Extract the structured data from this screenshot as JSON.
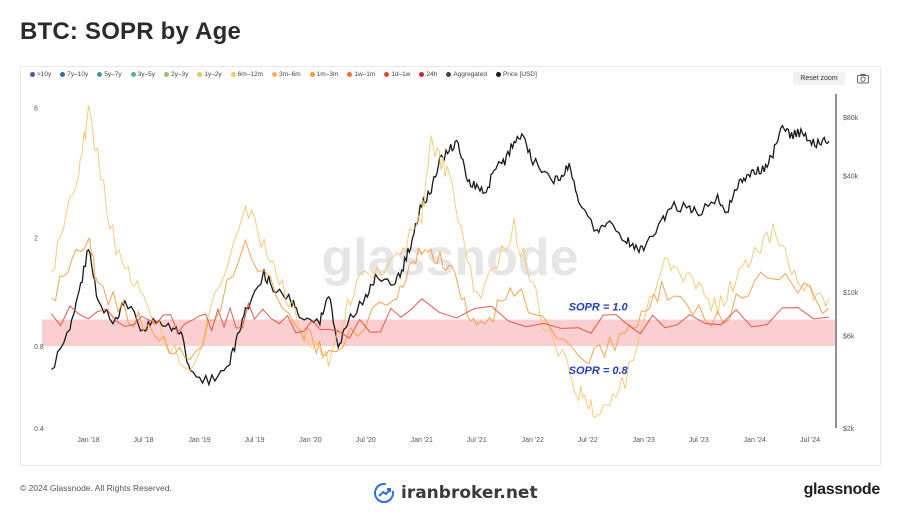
{
  "page": {
    "title": "BTC: SOPR by Age",
    "reset_zoom_label": "Reset zoom",
    "copyright": "© 2024 Glassnode. All Rights Reserved.",
    "brand_center": "iranbroker.net",
    "brand_right": "glassnode",
    "watermark": "glassnode"
  },
  "legend": [
    {
      "label": ">10y",
      "color": "#5a4fb8"
    },
    {
      "label": "7y–10y",
      "color": "#3a6aa8"
    },
    {
      "label": "5y–7y",
      "color": "#4a94a8"
    },
    {
      "label": "3y–5y",
      "color": "#5fae90"
    },
    {
      "label": "2y–3y",
      "color": "#9cc26a"
    },
    {
      "label": "1y–2y",
      "color": "#d9cf5a"
    },
    {
      "label": "6m–12m",
      "color": "#f2c66a"
    },
    {
      "label": "3m–6m",
      "color": "#f7b25e"
    },
    {
      "label": "1m–3m",
      "color": "#f49a3c"
    },
    {
      "label": "1w–1m",
      "color": "#ef6e3a"
    },
    {
      "label": "1d–1w",
      "color": "#e24a38"
    },
    {
      "label": "24h",
      "color": "#c8283a"
    },
    {
      "label": "Aggregated",
      "color": "#444444"
    },
    {
      "label": "Price [USD]",
      "color": "#1a1a1a"
    }
  ],
  "chart_data": {
    "type": "line",
    "title": "BTC: SOPR by Age",
    "x_ticks": [
      "Jan '18",
      "Jul '18",
      "Jan '19",
      "Jul '19",
      "Jan '20",
      "Jul '20",
      "Jan '21",
      "Jul '21",
      "Jan '22",
      "Jul '22",
      "Jan '23",
      "Jul '23",
      "Jan '24",
      "Jul '24"
    ],
    "y_left": {
      "scale": "log",
      "ticks": [
        0.4,
        0.8,
        2,
        6
      ],
      "range": [
        0.4,
        6.5
      ]
    },
    "y_right": {
      "scale": "log",
      "ticks": [
        "$2k",
        "$6k",
        "$10k",
        "$40k",
        "$80k"
      ],
      "tick_values": [
        2000,
        6000,
        10000,
        40000,
        80000
      ],
      "range": [
        2000,
        100000
      ]
    },
    "band": {
      "from": 0.8,
      "to": 1.0,
      "color": "#f8a8ac"
    },
    "annotations": [
      {
        "text": "SOPR = 1.0",
        "x": "2022-09",
        "y": 1.08
      },
      {
        "text": "SOPR = 0.8",
        "x": "2022-09",
        "y": 0.63
      }
    ],
    "series": [
      {
        "name": "Price [USD]",
        "axis": "right",
        "color": "#1a1a1a",
        "x": [
          "2017-09",
          "2017-11",
          "2017-12",
          "2018-01",
          "2018-02",
          "2018-04",
          "2018-05",
          "2018-07",
          "2018-08",
          "2018-10",
          "2018-11",
          "2018-12",
          "2019-02",
          "2019-04",
          "2019-05",
          "2019-06",
          "2019-08",
          "2019-09",
          "2019-11",
          "2019-12",
          "2020-02",
          "2020-03",
          "2020-04",
          "2020-05",
          "2020-07",
          "2020-08",
          "2020-10",
          "2020-11",
          "2020-12",
          "2021-01",
          "2021-02",
          "2021-03",
          "2021-04",
          "2021-05",
          "2021-06",
          "2021-07",
          "2021-08",
          "2021-09",
          "2021-10",
          "2021-11",
          "2021-12",
          "2022-01",
          "2022-03",
          "2022-04",
          "2022-05",
          "2022-06",
          "2022-08",
          "2022-09",
          "2022-11",
          "2022-12",
          "2023-01",
          "2023-03",
          "2023-04",
          "2023-06",
          "2023-07",
          "2023-09",
          "2023-10",
          "2023-11",
          "2023-12",
          "2024-01",
          "2024-02",
          "2024-03",
          "2024-04",
          "2024-05",
          "2024-06",
          "2024-07",
          "2024-08",
          "2024-09"
        ],
        "values": [
          4000,
          6500,
          9800,
          17000,
          9000,
          7000,
          9000,
          6300,
          7400,
          6500,
          6300,
          3800,
          3500,
          4000,
          5500,
          8000,
          12500,
          10500,
          9000,
          7400,
          7200,
          9800,
          5000,
          7000,
          9500,
          11800,
          10800,
          13500,
          19000,
          29000,
          33000,
          47000,
          55000,
          58000,
          37000,
          35000,
          33000,
          45000,
          47000,
          60000,
          64000,
          48000,
          37000,
          38000,
          46000,
          30000,
          20000,
          23000,
          19000,
          17000,
          16500,
          23000,
          28000,
          27000,
          26000,
          30000,
          26000,
          35000,
          38000,
          42000,
          43000,
          52000,
          70000,
          64000,
          67000,
          61000,
          58000,
          60000
        ]
      },
      {
        "name": "6m–12m",
        "axis": "left",
        "color": "#f2c66a",
        "x": [
          "2017-09",
          "2017-12",
          "2018-01",
          "2018-04",
          "2018-07",
          "2018-12",
          "2019-06",
          "2019-09",
          "2019-12",
          "2020-03",
          "2020-06",
          "2020-10",
          "2021-01",
          "2021-02",
          "2021-04",
          "2021-07",
          "2021-11",
          "2022-02",
          "2022-06",
          "2022-08",
          "2022-11",
          "2023-03",
          "2023-06",
          "2023-09",
          "2023-12",
          "2024-03",
          "2024-06",
          "2024-09"
        ],
        "values": [
          1.5,
          3.5,
          5.8,
          1.8,
          1.2,
          0.6,
          2.6,
          1.6,
          0.9,
          0.7,
          1.4,
          1.6,
          2.4,
          4.5,
          3.3,
          1.2,
          2.2,
          1.0,
          0.55,
          0.45,
          0.6,
          1.6,
          1.4,
          1.1,
          1.6,
          2.1,
          1.3,
          1.2
        ]
      },
      {
        "name": "1m–3m",
        "axis": "left",
        "color": "#f49a3c",
        "x": [
          "2017-09",
          "2018-01",
          "2018-02",
          "2018-07",
          "2018-12",
          "2019-06",
          "2019-12",
          "2020-03",
          "2020-10",
          "2021-01",
          "2021-04",
          "2021-07",
          "2021-11",
          "2022-06",
          "2022-11",
          "2023-03",
          "2023-09",
          "2024-03",
          "2024-09"
        ],
        "values": [
          1.2,
          2.0,
          1.3,
          0.95,
          0.7,
          1.8,
          0.9,
          0.75,
          1.2,
          1.8,
          1.6,
          0.9,
          1.3,
          0.7,
          0.85,
          1.3,
          1.0,
          1.5,
          1.1
        ]
      },
      {
        "name": "1d–1w",
        "axis": "left",
        "color": "#e24a38",
        "x": [
          "2017-09",
          "2018-06",
          "2019-01",
          "2019-07",
          "2020-03",
          "2021-01",
          "2022-06",
          "2023-06",
          "2024-09"
        ],
        "values": [
          1.05,
          0.98,
          0.97,
          1.05,
          0.9,
          1.08,
          0.93,
          1.01,
          1.02
        ]
      }
    ]
  }
}
